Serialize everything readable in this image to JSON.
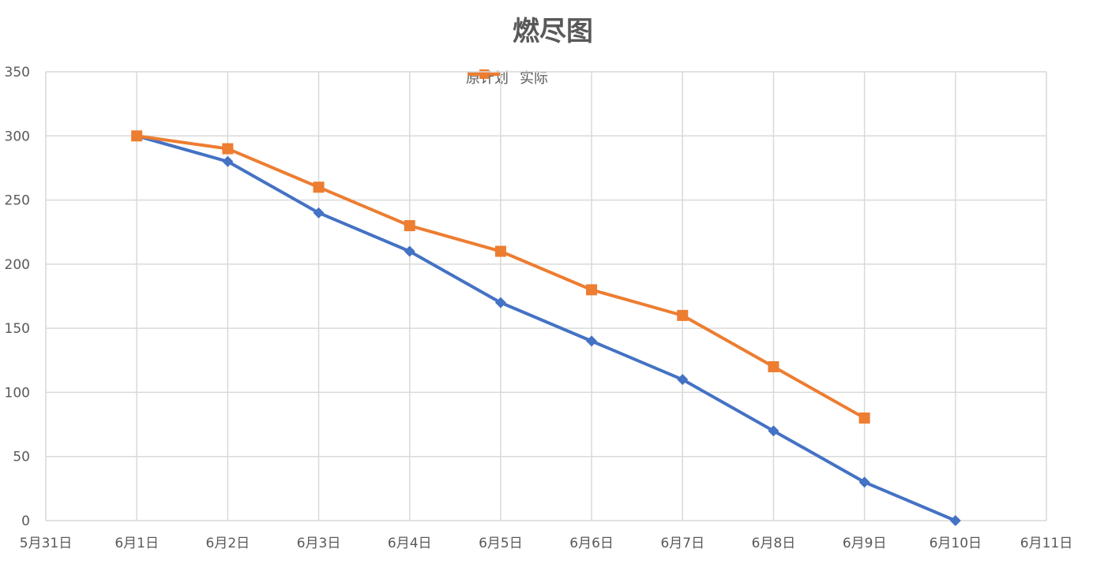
{
  "chart_data": {
    "type": "line",
    "title": "燃尽图",
    "xlabel": "",
    "ylabel": "",
    "x": [
      "5月31日",
      "6月1日",
      "6月2日",
      "6月3日",
      "6月4日",
      "6月5日",
      "6月6日",
      "6月7日",
      "6月8日",
      "6月9日",
      "6月10日",
      "6月11日"
    ],
    "ylim": [
      0,
      350
    ],
    "yticks": [
      0,
      50,
      100,
      150,
      200,
      250,
      300,
      350
    ],
    "grid": true,
    "legend_position": "top",
    "series": [
      {
        "name": "原计划",
        "color": "#4472C4",
        "marker": "diamond",
        "x": [
          "6月1日",
          "6月2日",
          "6月3日",
          "6月4日",
          "6月5日",
          "6月6日",
          "6月7日",
          "6月8日",
          "6月9日",
          "6月10日"
        ],
        "values": [
          300,
          280,
          240,
          210,
          170,
          140,
          110,
          70,
          30,
          0
        ]
      },
      {
        "name": "实际",
        "color": "#ED7D31",
        "marker": "square",
        "x": [
          "6月1日",
          "6月2日",
          "6月3日",
          "6月4日",
          "6月5日",
          "6月6日",
          "6月7日",
          "6月8日",
          "6月9日"
        ],
        "values": [
          300,
          290,
          260,
          230,
          210,
          180,
          160,
          120,
          80
        ]
      }
    ]
  }
}
